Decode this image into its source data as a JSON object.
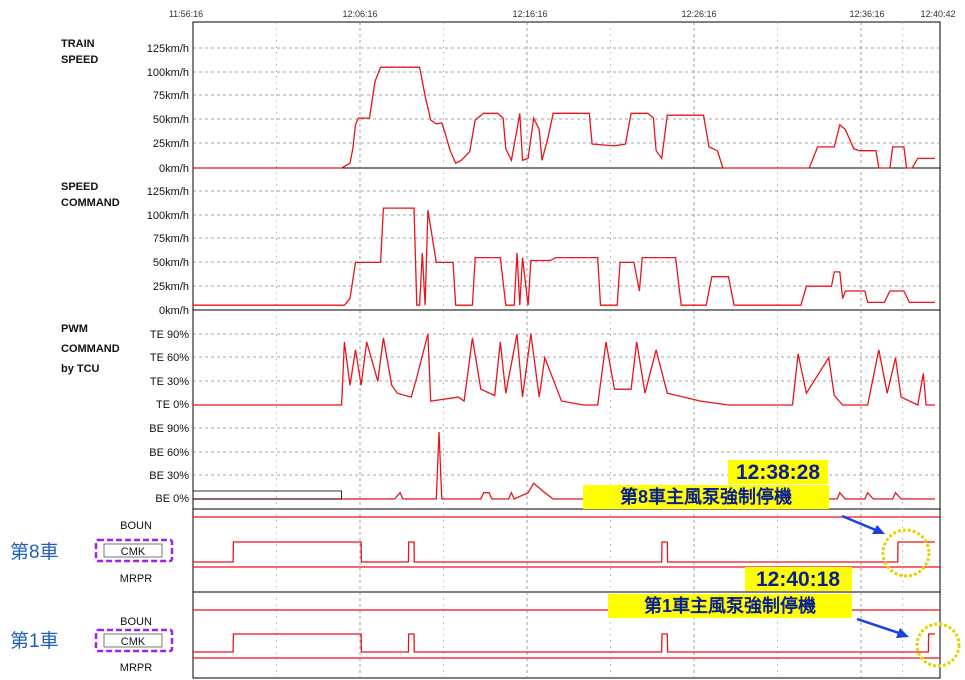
{
  "time_axis": [
    "11:56:16",
    "12:06:16",
    "12:16:16",
    "12:26:16",
    "12:36:16",
    "12:40:42"
  ],
  "colors": {
    "trace": "#e8141c",
    "annotation_bg": "#ffff00",
    "annotation_text": "#0a1f8f",
    "circle": "#e6d200",
    "arrow": "#1c3fe0",
    "cmk_box": "#a020f0",
    "car_label": "#1f5fc0"
  },
  "panels": {
    "train_speed": {
      "title_lines": [
        "TRAIN",
        "SPEED"
      ],
      "ticks": [
        "125km/h",
        "100km/h",
        "75km/h",
        "50km/h",
        "25km/h",
        "0km/h"
      ]
    },
    "speed_command": {
      "title_lines": [
        "SPEED",
        "COMMAND"
      ],
      "ticks": [
        "125km/h",
        "100km/h",
        "75km/h",
        "50km/h",
        "25km/h",
        "0km/h"
      ]
    },
    "pwm_command": {
      "title_lines": [
        "PWM",
        "COMMAND",
        "by TCU"
      ],
      "te_ticks": [
        "TE 90%",
        "TE 60%",
        "TE 30%",
        "TE   0%"
      ],
      "be_ticks": [
        "BE 90%",
        "BE 60%",
        "BE 30%",
        "BE   0%"
      ]
    }
  },
  "digital": {
    "car8": {
      "label": "第8車",
      "top": "BOUN",
      "middle": "CMK",
      "bottom": "MRPR"
    },
    "car1": {
      "label": "第1車",
      "top": "BOUN",
      "middle": "CMK",
      "bottom": "MRPR"
    }
  },
  "annotations": {
    "car8": {
      "time": "12:38:28",
      "text": "第8車主風泵強制停機"
    },
    "car1": {
      "time": "12:40:18",
      "text": "第1車主風泵強制停機"
    }
  },
  "chart_data": {
    "type": "line",
    "x_unit": "time",
    "x_range": [
      "11:56:16",
      "12:40:42"
    ],
    "series": [
      {
        "name": "TRAIN SPEED",
        "y_unit": "km/h",
        "ylim": [
          0,
          125
        ],
        "points": [
          [
            "11:56:16",
            0
          ],
          [
            "12:05:10",
            0
          ],
          [
            "12:05:40",
            5
          ],
          [
            "12:05:50",
            20
          ],
          [
            "12:06:00",
            45
          ],
          [
            "12:06:10",
            52
          ],
          [
            "12:06:50",
            52
          ],
          [
            "12:07:10",
            90
          ],
          [
            "12:07:30",
            105
          ],
          [
            "12:09:50",
            105
          ],
          [
            "12:10:10",
            75
          ],
          [
            "12:10:30",
            50
          ],
          [
            "12:10:50",
            46
          ],
          [
            "12:11:10",
            47
          ],
          [
            "12:11:20",
            38
          ],
          [
            "12:11:40",
            18
          ],
          [
            "12:12:00",
            5
          ],
          [
            "12:12:20",
            8
          ],
          [
            "12:12:50",
            17
          ],
          [
            "12:13:10",
            50
          ],
          [
            "12:13:40",
            57
          ],
          [
            "12:14:30",
            57
          ],
          [
            "12:14:50",
            52
          ],
          [
            "12:15:00",
            20
          ],
          [
            "12:15:20",
            8
          ],
          [
            "12:15:40",
            40
          ],
          [
            "12:15:50",
            57
          ],
          [
            "12:16:00",
            8
          ],
          [
            "12:16:20",
            10
          ],
          [
            "12:16:40",
            52
          ],
          [
            "12:17:00",
            40
          ],
          [
            "12:17:10",
            8
          ],
          [
            "12:17:30",
            30
          ],
          [
            "12:17:50",
            57
          ],
          [
            "12:20:00",
            57
          ],
          [
            "12:20:10",
            25
          ],
          [
            "12:21:30",
            23
          ],
          [
            "12:22:10",
            25
          ],
          [
            "12:22:30",
            57
          ],
          [
            "12:23:30",
            57
          ],
          [
            "12:23:50",
            52
          ],
          [
            "12:24:00",
            18
          ],
          [
            "12:24:20",
            10
          ],
          [
            "12:24:40",
            55
          ],
          [
            "12:26:50",
            55
          ],
          [
            "12:27:10",
            22
          ],
          [
            "12:27:40",
            18
          ],
          [
            "12:28:00",
            0
          ],
          [
            "12:33:10",
            0
          ],
          [
            "12:33:40",
            22
          ],
          [
            "12:34:40",
            22
          ],
          [
            "12:35:00",
            45
          ],
          [
            "12:35:20",
            40
          ],
          [
            "12:35:50",
            20
          ],
          [
            "12:36:10",
            18
          ],
          [
            "12:37:10",
            18
          ],
          [
            "12:37:20",
            0
          ],
          [
            "12:38:00",
            0
          ],
          [
            "12:38:10",
            22
          ],
          [
            "12:38:50",
            22
          ],
          [
            "12:39:00",
            0
          ],
          [
            "12:39:20",
            0
          ],
          [
            "12:39:40",
            10
          ],
          [
            "12:40:42",
            10
          ]
        ]
      },
      {
        "name": "SPEED COMMAND",
        "y_unit": "km/h",
        "ylim": [
          0,
          125
        ],
        "points": [
          [
            "11:56:16",
            5
          ],
          [
            "12:05:20",
            5
          ],
          [
            "12:05:40",
            12
          ],
          [
            "12:06:00",
            50
          ],
          [
            "12:07:30",
            50
          ],
          [
            "12:07:40",
            107
          ],
          [
            "12:09:30",
            107
          ],
          [
            "12:09:40",
            5
          ],
          [
            "12:09:50",
            5
          ],
          [
            "12:10:00",
            60
          ],
          [
            "12:10:10",
            5
          ],
          [
            "12:10:20",
            105
          ],
          [
            "12:10:50",
            50
          ],
          [
            "12:11:50",
            50
          ],
          [
            "12:12:00",
            5
          ],
          [
            "12:13:00",
            5
          ],
          [
            "12:13:10",
            55
          ],
          [
            "12:14:40",
            55
          ],
          [
            "12:15:00",
            5
          ],
          [
            "12:15:30",
            5
          ],
          [
            "12:15:40",
            60
          ],
          [
            "12:15:50",
            5
          ],
          [
            "12:16:00",
            55
          ],
          [
            "12:16:20",
            5
          ],
          [
            "12:16:30",
            52
          ],
          [
            "12:17:40",
            52
          ],
          [
            "12:18:00",
            55
          ],
          [
            "12:20:30",
            55
          ],
          [
            "12:20:40",
            5
          ],
          [
            "12:21:40",
            5
          ],
          [
            "12:21:50",
            50
          ],
          [
            "12:22:40",
            50
          ],
          [
            "12:23:00",
            20
          ],
          [
            "12:23:10",
            55
          ],
          [
            "12:25:10",
            55
          ],
          [
            "12:25:30",
            5
          ],
          [
            "12:27:00",
            5
          ],
          [
            "12:27:20",
            35
          ],
          [
            "12:28:20",
            35
          ],
          [
            "12:28:40",
            5
          ],
          [
            "12:32:40",
            5
          ],
          [
            "12:33:00",
            25
          ],
          [
            "12:34:30",
            25
          ],
          [
            "12:34:40",
            40
          ],
          [
            "12:35:00",
            40
          ],
          [
            "12:35:10",
            12
          ],
          [
            "12:35:20",
            20
          ],
          [
            "12:36:30",
            20
          ],
          [
            "12:36:40",
            8
          ],
          [
            "12:37:40",
            8
          ],
          [
            "12:38:00",
            20
          ],
          [
            "12:38:50",
            20
          ],
          [
            "12:39:10",
            8
          ],
          [
            "12:40:42",
            8
          ]
        ]
      },
      {
        "name": "PWM COMMAND TE",
        "y_unit": "%",
        "ylim": [
          0,
          90
        ],
        "points": [
          [
            "11:56:16",
            0
          ],
          [
            "12:05:10",
            0
          ],
          [
            "12:05:20",
            80
          ],
          [
            "12:05:40",
            25
          ],
          [
            "12:06:00",
            70
          ],
          [
            "12:06:20",
            25
          ],
          [
            "12:06:40",
            80
          ],
          [
            "12:07:20",
            30
          ],
          [
            "12:07:40",
            85
          ],
          [
            "12:08:10",
            25
          ],
          [
            "12:08:30",
            15
          ],
          [
            "12:09:20",
            10
          ],
          [
            "12:09:40",
            35
          ],
          [
            "12:10:20",
            90
          ],
          [
            "12:10:30",
            5
          ],
          [
            "12:12:10",
            10
          ],
          [
            "12:12:30",
            5
          ],
          [
            "12:13:00",
            85
          ],
          [
            "12:13:30",
            20
          ],
          [
            "12:14:20",
            12
          ],
          [
            "12:14:40",
            80
          ],
          [
            "12:15:00",
            15
          ],
          [
            "12:15:40",
            90
          ],
          [
            "12:16:00",
            10
          ],
          [
            "12:16:30",
            90
          ],
          [
            "12:17:00",
            10
          ],
          [
            "12:17:20",
            60
          ],
          [
            "12:18:20",
            5
          ],
          [
            "12:19:40",
            0
          ],
          [
            "12:20:30",
            0
          ],
          [
            "12:21:00",
            80
          ],
          [
            "12:21:30",
            20
          ],
          [
            "12:22:30",
            20
          ],
          [
            "12:22:50",
            80
          ],
          [
            "12:23:20",
            15
          ],
          [
            "12:24:00",
            70
          ],
          [
            "12:24:40",
            15
          ],
          [
            "12:26:40",
            5
          ],
          [
            "12:28:20",
            0
          ],
          [
            "12:32:10",
            0
          ],
          [
            "12:32:30",
            65
          ],
          [
            "12:33:00",
            15
          ],
          [
            "12:34:20",
            60
          ],
          [
            "12:34:40",
            12
          ],
          [
            "12:35:10",
            0
          ],
          [
            "12:36:40",
            0
          ],
          [
            "12:37:20",
            70
          ],
          [
            "12:37:50",
            15
          ],
          [
            "12:38:20",
            60
          ],
          [
            "12:38:40",
            10
          ],
          [
            "12:39:40",
            0
          ],
          [
            "12:40:00",
            40
          ],
          [
            "12:40:10",
            0
          ],
          [
            "12:40:42",
            0
          ]
        ]
      },
      {
        "name": "PWM COMMAND BE",
        "y_unit": "%",
        "ylim": [
          0,
          90
        ],
        "points": [
          [
            "11:56:16",
            0
          ],
          [
            "12:08:20",
            0
          ],
          [
            "12:08:40",
            8
          ],
          [
            "12:08:50",
            0
          ],
          [
            "12:10:50",
            0
          ],
          [
            "12:11:00",
            85
          ],
          [
            "12:11:10",
            0
          ],
          [
            "12:13:30",
            0
          ],
          [
            "12:13:40",
            8
          ],
          [
            "12:14:00",
            8
          ],
          [
            "12:14:10",
            0
          ],
          [
            "12:15:10",
            0
          ],
          [
            "12:15:20",
            8
          ],
          [
            "12:15:30",
            0
          ],
          [
            "12:16:20",
            8
          ],
          [
            "12:16:40",
            20
          ],
          [
            "12:17:20",
            8
          ],
          [
            "12:17:50",
            0
          ],
          [
            "12:22:40",
            0
          ],
          [
            "12:23:00",
            8
          ],
          [
            "12:23:20",
            0
          ],
          [
            "12:26:00",
            0
          ],
          [
            "12:26:20",
            8
          ],
          [
            "12:26:30",
            0
          ],
          [
            "12:30:10",
            0
          ],
          [
            "12:30:20",
            8
          ],
          [
            "12:30:30",
            0
          ],
          [
            "12:34:50",
            0
          ],
          [
            "12:35:00",
            8
          ],
          [
            "12:35:20",
            0
          ],
          [
            "12:36:30",
            0
          ],
          [
            "12:36:40",
            8
          ],
          [
            "12:37:00",
            0
          ],
          [
            "12:38:10",
            0
          ],
          [
            "12:38:20",
            8
          ],
          [
            "12:38:40",
            0
          ],
          [
            "12:40:42",
            0
          ]
        ]
      },
      {
        "name": "第8車 CMK",
        "y_unit": "state",
        "states": [
          "MRPR",
          "CMK",
          "BOUN"
        ],
        "points": [
          [
            "11:56:16",
            "CMK"
          ],
          [
            "11:58:40",
            "CMK"
          ],
          [
            "11:58:41",
            "BOUN"
          ],
          [
            "12:06:20",
            "BOUN"
          ],
          [
            "12:06:21",
            "CMK"
          ],
          [
            "12:09:10",
            "CMK"
          ],
          [
            "12:09:11",
            "BOUN"
          ],
          [
            "12:09:30",
            "BOUN"
          ],
          [
            "12:09:31",
            "CMK"
          ],
          [
            "12:24:20",
            "CMK"
          ],
          [
            "12:24:21",
            "BOUN"
          ],
          [
            "12:24:40",
            "BOUN"
          ],
          [
            "12:24:41",
            "CMK"
          ],
          [
            "12:38:28",
            "CMK"
          ],
          [
            "12:38:29",
            "BOUN"
          ],
          [
            "12:40:42",
            "BOUN"
          ]
        ]
      },
      {
        "name": "第1車 CMK",
        "y_unit": "state",
        "states": [
          "MRPR",
          "CMK",
          "BOUN"
        ],
        "points": [
          [
            "11:56:16",
            "CMK"
          ],
          [
            "11:58:40",
            "CMK"
          ],
          [
            "11:58:41",
            "BOUN"
          ],
          [
            "12:06:20",
            "BOUN"
          ],
          [
            "12:06:21",
            "CMK"
          ],
          [
            "12:09:10",
            "CMK"
          ],
          [
            "12:09:11",
            "BOUN"
          ],
          [
            "12:09:30",
            "BOUN"
          ],
          [
            "12:09:31",
            "CMK"
          ],
          [
            "12:24:20",
            "CMK"
          ],
          [
            "12:24:21",
            "BOUN"
          ],
          [
            "12:24:40",
            "BOUN"
          ],
          [
            "12:24:41",
            "CMK"
          ],
          [
            "12:40:18",
            "CMK"
          ],
          [
            "12:40:19",
            "BOUN"
          ],
          [
            "12:40:42",
            "BOUN"
          ]
        ]
      }
    ]
  }
}
